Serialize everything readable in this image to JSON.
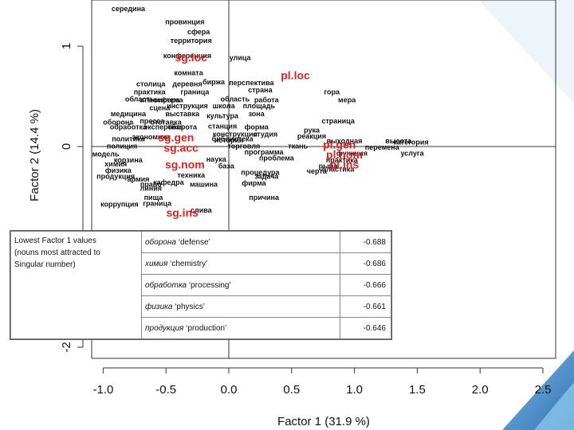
{
  "chart_data": {
    "type": "scatter",
    "xlabel": "Factor 1  (31.9 %)",
    "ylabel": "Factor 2  (14.4 %)",
    "xlim": [
      -1.2,
      2.55
    ],
    "ylim": [
      -2.25,
      1.6
    ],
    "x_ticks": [
      "-1.0",
      "-0.5",
      "0.0",
      "0.5",
      "1.0",
      "1.5",
      "2.0",
      "2.5"
    ],
    "x_tick_values": [
      -1.0,
      -0.5,
      0.0,
      0.5,
      1.0,
      1.5,
      2.0,
      2.5
    ],
    "y_ticks": [
      "-2",
      "0",
      "1"
    ],
    "y_tick_values": [
      -2,
      0,
      1
    ],
    "reference_lines": {
      "x": 0,
      "y": 0
    },
    "case_points": [
      {
        "label": "sg.loc",
        "x": -0.3,
        "y": 0.85
      },
      {
        "label": "pl.loc",
        "x": 0.53,
        "y": 0.67
      },
      {
        "label": "sg.gen",
        "x": -0.42,
        "y": 0.05
      },
      {
        "label": "sg.acc",
        "x": -0.38,
        "y": -0.05
      },
      {
        "label": "sg.nom",
        "x": -0.35,
        "y": -0.22
      },
      {
        "label": "sg.ins",
        "x": -0.37,
        "y": -0.7
      },
      {
        "label": "pl.gen",
        "x": 0.88,
        "y": -0.02
      },
      {
        "label": "pl.nom",
        "x": 0.92,
        "y": -0.12
      },
      {
        "label": "pl.ins",
        "x": 0.92,
        "y": -0.22
      }
    ],
    "word_points": [
      {
        "label": "середина",
        "x": -0.8,
        "y": 1.35
      },
      {
        "label": "провинция",
        "x": -0.35,
        "y": 1.22
      },
      {
        "label": "сфера",
        "x": -0.24,
        "y": 1.12
      },
      {
        "label": "территория",
        "x": -0.3,
        "y": 1.03
      },
      {
        "label": "конференция",
        "x": -0.33,
        "y": 0.88
      },
      {
        "label": "улица",
        "x": 0.09,
        "y": 0.86
      },
      {
        "label": "комната",
        "x": -0.32,
        "y": 0.71
      },
      {
        "label": "биржа",
        "x": -0.12,
        "y": 0.62
      },
      {
        "label": "перспектива",
        "x": 0.18,
        "y": 0.61
      },
      {
        "label": "столица",
        "x": -0.62,
        "y": 0.6
      },
      {
        "label": "деревня",
        "x": -0.33,
        "y": 0.6
      },
      {
        "label": "граница",
        "x": -0.27,
        "y": 0.52
      },
      {
        "label": "страна",
        "x": 0.25,
        "y": 0.54
      },
      {
        "label": "практика",
        "x": -0.63,
        "y": 0.52
      },
      {
        "label": "гора",
        "x": 0.82,
        "y": 0.52
      },
      {
        "label": "мера",
        "x": 0.94,
        "y": 0.44
      },
      {
        "label": "система",
        "x": -0.48,
        "y": 0.44
      },
      {
        "label": "атмосфера",
        "x": -0.55,
        "y": 0.44
      },
      {
        "label": "область",
        "x": -0.71,
        "y": 0.45
      },
      {
        "label": "область",
        "x": 0.05,
        "y": 0.45
      },
      {
        "label": "работа",
        "x": 0.3,
        "y": 0.44
      },
      {
        "label": "площадь",
        "x": 0.24,
        "y": 0.38
      },
      {
        "label": "школа",
        "x": -0.04,
        "y": 0.38
      },
      {
        "label": "сцена",
        "x": -0.55,
        "y": 0.36
      },
      {
        "label": "медицина",
        "x": -0.8,
        "y": 0.3
      },
      {
        "label": "выставка",
        "x": -0.37,
        "y": 0.3
      },
      {
        "label": "зона",
        "x": 0.22,
        "y": 0.3
      },
      {
        "label": "отставка",
        "x": -0.5,
        "y": 0.22
      },
      {
        "label": "пресса",
        "x": -0.61,
        "y": 0.23
      },
      {
        "label": "страница",
        "x": 0.87,
        "y": 0.23
      },
      {
        "label": "обработка",
        "x": -0.8,
        "y": 0.17
      },
      {
        "label": "экспертиза",
        "x": -0.52,
        "y": 0.17
      },
      {
        "label": "оборота",
        "x": -0.37,
        "y": 0.17
      },
      {
        "label": "станция",
        "x": -0.05,
        "y": 0.18
      },
      {
        "label": "форма",
        "x": 0.22,
        "y": 0.17
      },
      {
        "label": "рука",
        "x": 0.66,
        "y": 0.14
      },
      {
        "label": "конструкция",
        "x": 0.05,
        "y": 0.1
      },
      {
        "label": "студия",
        "x": 0.29,
        "y": 0.1
      },
      {
        "label": "реакция",
        "x": 0.66,
        "y": 0.08
      },
      {
        "label": "библиотека",
        "x": 0.03,
        "y": 0.05
      },
      {
        "label": "выходная",
        "x": 0.92,
        "y": 0.03
      },
      {
        "label": "высота",
        "x": 1.35,
        "y": 0.03
      },
      {
        "label": "категория",
        "x": 1.45,
        "y": 0.02
      },
      {
        "label": "функция",
        "x": 0.98,
        "y": -0.09
      },
      {
        "label": "перемена",
        "x": 1.22,
        "y": -0.03
      },
      {
        "label": "услуга",
        "x": 1.46,
        "y": -0.09
      },
      {
        "label": "модель",
        "x": -0.98,
        "y": -0.1
      },
      {
        "label": "корзина",
        "x": -0.8,
        "y": -0.16
      },
      {
        "label": "полиция",
        "x": -0.85,
        "y": -0.02
      },
      {
        "label": "проблема",
        "x": 0.38,
        "y": -0.14
      },
      {
        "label": "рыба",
        "x": 0.79,
        "y": -0.22
      },
      {
        "label": "практика",
        "x": 0.9,
        "y": -0.16
      },
      {
        "label": "пластика",
        "x": 0.87,
        "y": -0.25
      },
      {
        "label": "черта",
        "x": 0.7,
        "y": -0.27
      },
      {
        "label": "процедура",
        "x": 0.25,
        "y": -0.28
      },
      {
        "label": "задача",
        "x": 0.3,
        "y": -0.32
      },
      {
        "label": "фирма",
        "x": 0.2,
        "y": -0.39
      },
      {
        "label": "кафедра",
        "x": -0.48,
        "y": -0.38
      },
      {
        "label": "машина",
        "x": -0.2,
        "y": -0.4
      },
      {
        "label": "армия",
        "x": -0.72,
        "y": -0.35
      },
      {
        "label": "право",
        "x": -0.62,
        "y": -0.4
      },
      {
        "label": "линия",
        "x": -0.62,
        "y": -0.44
      },
      {
        "label": "пища",
        "x": -0.6,
        "y": -0.53
      },
      {
        "label": "коррупция",
        "x": -0.87,
        "y": -0.6
      },
      {
        "label": "граница",
        "x": -0.57,
        "y": -0.59
      },
      {
        "label": "причина",
        "x": 0.28,
        "y": -0.53
      },
      {
        "label": "слива",
        "x": -0.22,
        "y": -0.66
      },
      {
        "label": "техника",
        "x": -0.3,
        "y": -0.31
      },
      {
        "label": "продукция",
        "x": -0.9,
        "y": -0.32
      },
      {
        "label": "физика",
        "x": -0.88,
        "y": -0.26
      },
      {
        "label": "химия",
        "x": -0.9,
        "y": -0.2
      },
      {
        "label": "оборона",
        "x": -0.88,
        "y": 0.22
      },
      {
        "label": "инструкция",
        "x": -0.33,
        "y": 0.38
      },
      {
        "label": "политика",
        "x": -0.8,
        "y": 0.05
      },
      {
        "label": "экономика",
        "x": -0.62,
        "y": 0.07
      },
      {
        "label": "культура",
        "x": -0.05,
        "y": 0.28
      },
      {
        "label": "история",
        "x": 0.0,
        "y": 0.04
      },
      {
        "label": "торговля",
        "x": 0.12,
        "y": -0.02
      },
      {
        "label": "наука",
        "x": -0.1,
        "y": -0.15
      },
      {
        "label": "программа",
        "x": 0.28,
        "y": -0.08
      },
      {
        "label": "база",
        "x": -0.02,
        "y": -0.22
      },
      {
        "label": "ткань",
        "x": 0.55,
        "y": -0.02
      }
    ],
    "table": {
      "caption": "Lowest Factor 1 values (nouns most attracted to Singular number)",
      "rows": [
        {
          "word": "оборона",
          "gloss": "‘defense’",
          "value": "-0.688"
        },
        {
          "word": "химия",
          "gloss": "‘chemistry’",
          "value": "-0.686"
        },
        {
          "word": "обработка",
          "gloss": "‘processing’",
          "value": "-0.666"
        },
        {
          "word": "физика",
          "gloss": "‘physics’",
          "value": "-0.661"
        },
        {
          "word": "продукция",
          "gloss": "‘production’",
          "value": "-0.646"
        }
      ]
    }
  },
  "colors": {
    "case_label": "#e02020",
    "word_label": "#111111",
    "frame": "#333333",
    "accent_blue": "#3c86c6"
  },
  "table_caption_lines": [
    "Lowest Factor 1 values",
    "(nouns most attracted to",
    "Singular number)"
  ]
}
